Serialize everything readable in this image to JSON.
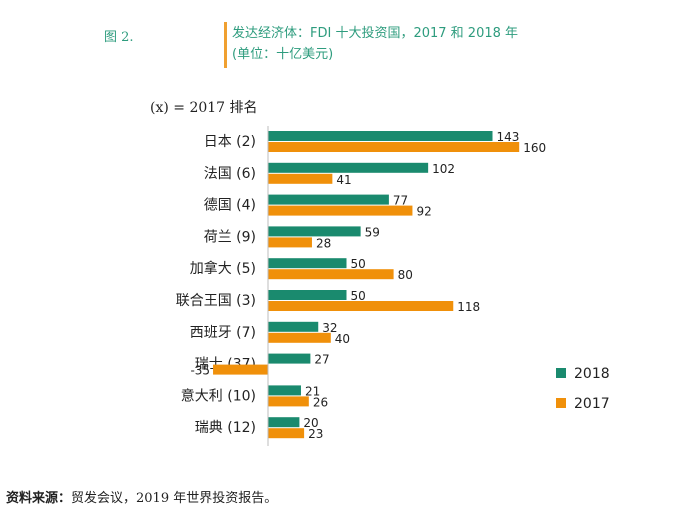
{
  "figure_label": "图 2.",
  "title_line1": "发达经济体：FDI 十大投资国，2017 和 2018 年",
  "title_line2": "(单位：十亿美元)",
  "note": "(x) = 2017 排名",
  "source_label": "资料来源：",
  "source_text": "贸发会议，2019 年世界投资报告。",
  "colors": {
    "2018": "#1a8a6e",
    "2017": "#f0900a"
  },
  "chart_data": {
    "type": "bar",
    "orientation": "horizontal",
    "categories": [
      "日本 (2)",
      "法国 (6)",
      "德国 (4)",
      "荷兰 (9)",
      "加拿大 (5)",
      "联合王国 (3)",
      "西班牙 (7)",
      "瑞士 (37)",
      "意大利 (10)",
      "瑞典 (12)"
    ],
    "series": [
      {
        "name": "2018",
        "values": [
          143,
          102,
          77,
          59,
          50,
          50,
          32,
          27,
          21,
          20
        ]
      },
      {
        "name": "2017",
        "values": [
          160,
          41,
          92,
          28,
          80,
          118,
          40,
          -35,
          26,
          23
        ]
      }
    ],
    "data_labels": {
      "2018": [
        "143",
        "102",
        "77",
        "59",
        "50",
        "50",
        "32",
        "27",
        "21",
        "20"
      ],
      "2017": [
        "160",
        "41",
        "92",
        "28",
        "80",
        "118",
        "40",
        "-35",
        "26",
        "23"
      ]
    },
    "legend_position": "right",
    "grid": false
  }
}
